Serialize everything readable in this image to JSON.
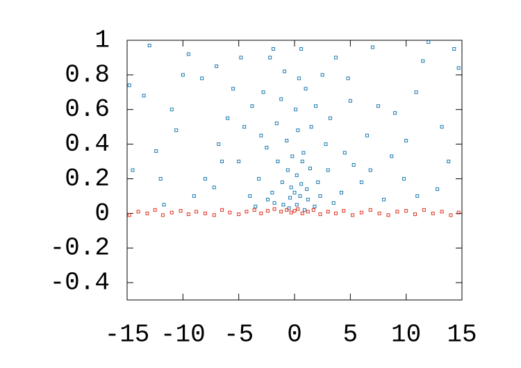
{
  "chart_data": {
    "type": "scatter",
    "xlim": [
      -15,
      15
    ],
    "ylim": [
      -0.5,
      1
    ],
    "xticks": [
      -15,
      -10,
      -5,
      0,
      5,
      10,
      15
    ],
    "yticks": [
      -0.4,
      -0.2,
      0,
      0.2,
      0.4,
      0.6,
      0.8,
      1
    ],
    "grid": false,
    "series": [
      {
        "color": "#1a78ae",
        "x": [
          -1,
          0.5,
          1.2,
          -0.3,
          0.2,
          -2,
          2.1,
          -1.5,
          0.8,
          -0.7,
          1.5,
          -2.5,
          3,
          -3.2,
          0.1,
          1,
          -1.2,
          2.5,
          -2.2,
          0.6,
          -0.5,
          0.9,
          1.8,
          -1.8,
          -4,
          4.2,
          -5,
          5.3,
          -6,
          6.5,
          -7.2,
          7.5,
          -8.3,
          8.7,
          -9.5,
          9.8,
          -10.6,
          10.9,
          -11.7,
          11.5,
          -12.4,
          12.8,
          -13.5,
          13.2,
          -14.5,
          14.3,
          -14.8,
          14.7,
          -13,
          12,
          -11,
          10,
          -9,
          9,
          -8,
          8,
          -7,
          7,
          -6.5,
          6,
          -5.5,
          5,
          -4.5,
          4.5,
          -3.8,
          3.7,
          -3,
          3.2,
          -2.8,
          2.8,
          -1.6,
          1.4,
          -0.9,
          0.4,
          -0.2,
          0.3,
          -1.1,
          1.1,
          -2.4,
          2.3,
          -0.6,
          0.7,
          -3.5,
          3.5,
          -12,
          13.8,
          -10,
          11,
          -6.8,
          6.8,
          -4.8,
          4.8,
          1.9,
          -1.9,
          0,
          0.2,
          -0.4,
          0.6
        ],
        "values": [
          0.05,
          0.1,
          0.08,
          0.15,
          0.22,
          0.12,
          0.18,
          0.3,
          0.35,
          0.42,
          0.5,
          0.38,
          0.25,
          0.2,
          0.6,
          0.72,
          0.66,
          0.8,
          0.9,
          0.95,
          0.03,
          0.02,
          0.04,
          0.06,
          0.1,
          0.12,
          0.3,
          0.28,
          0.55,
          0.45,
          0.15,
          0.62,
          0.78,
          0.33,
          0.92,
          0.2,
          0.48,
          0.7,
          0.05,
          0.88,
          0.36,
          0.14,
          0.68,
          0.5,
          0.25,
          0.95,
          0.74,
          0.84,
          0.97,
          0.99,
          0.6,
          0.42,
          0.1,
          0.58,
          0.2,
          0.08,
          0.85,
          0.96,
          0.3,
          0.18,
          0.72,
          0.65,
          0.5,
          0.35,
          0.62,
          0.9,
          0.45,
          0.55,
          0.7,
          0.4,
          0.52,
          0.26,
          0.82,
          0.78,
          0.33,
          0.48,
          0.18,
          0.14,
          0.08,
          0.1,
          0.25,
          0.3,
          0.04,
          0.06,
          0.2,
          0.3,
          0.8,
          0.1,
          0.4,
          0.25,
          0.9,
          0.78,
          0.62,
          0.95,
          0.12,
          0.05,
          0.09,
          0.17
        ]
      },
      {
        "color": "#e0301e",
        "x": [
          -14.8,
          -14,
          -13.2,
          -12.5,
          -11.8,
          -11,
          -10.2,
          -9.5,
          -8.8,
          -8,
          -7.2,
          -6.5,
          -5.8,
          -5,
          -4.3,
          -3.6,
          -3,
          -2.4,
          -1.8,
          -1.2,
          -0.7,
          -0.3,
          0,
          0.3,
          0.7,
          1.2,
          1.7,
          2.3,
          3,
          3.7,
          4.4,
          5.2,
          6,
          6.8,
          7.6,
          8.4,
          9.2,
          10,
          10.8,
          11.6,
          12.4,
          13.2,
          14,
          14.7
        ],
        "values": [
          -0.01,
          0.01,
          0,
          0.02,
          -0.01,
          0.005,
          0.015,
          -0.005,
          0.01,
          0,
          -0.01,
          0.02,
          0.005,
          -0.005,
          0.01,
          0.02,
          0,
          0.015,
          0.025,
          0.01,
          0.02,
          0.005,
          0.015,
          0.025,
          0,
          0.01,
          0.02,
          -0.005,
          0.01,
          0,
          0.015,
          -0.01,
          0.005,
          0.02,
          0,
          -0.01,
          0.01,
          0.015,
          -0.005,
          0.02,
          0,
          0.01,
          -0.01,
          0.005
        ]
      }
    ]
  }
}
